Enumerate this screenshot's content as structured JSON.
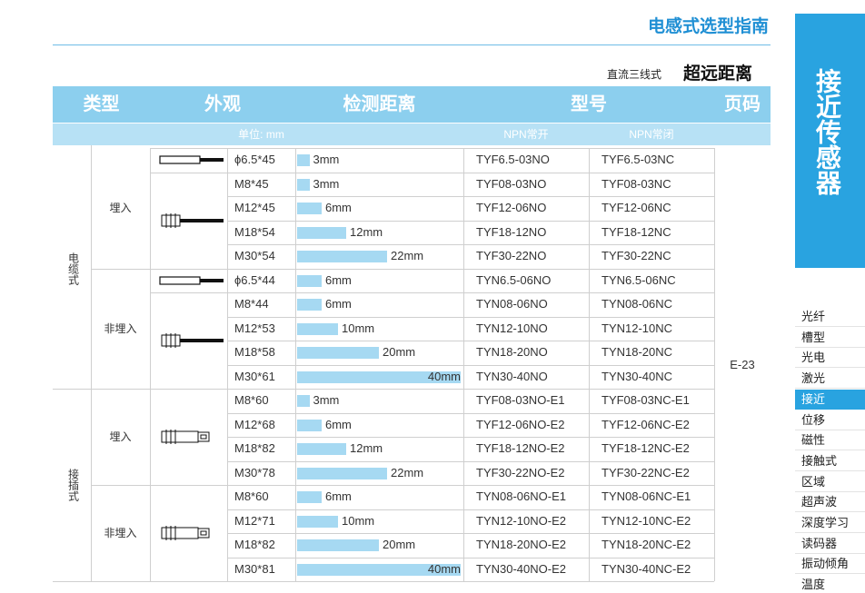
{
  "header": {
    "title": "电感式选型指南",
    "subtitle_small": "直流三线式",
    "subtitle": "超远距离"
  },
  "table": {
    "columns": [
      "类型",
      "外观",
      "检测距离",
      "型号",
      "页码"
    ],
    "unit": "单位: mm",
    "subcolumns": [
      "NPN常开",
      "NPN常闭"
    ],
    "page": "E-23",
    "groups": [
      {
        "label": "电缆式",
        "subgroups": [
          {
            "label": "埋入",
            "rows": [
              {
                "size": "ϕ6.5*45",
                "distance": 3,
                "distance_label": "3mm",
                "no": "TYF6.5-03NO",
                "nc": "TYF6.5-03NC"
              },
              {
                "size": "M8*45",
                "distance": 3,
                "distance_label": "3mm",
                "no": "TYF08-03NO",
                "nc": "TYF08-03NC"
              },
              {
                "size": "M12*45",
                "distance": 6,
                "distance_label": "6mm",
                "no": "TYF12-06NO",
                "nc": "TYF12-06NC"
              },
              {
                "size": "M18*54",
                "distance": 12,
                "distance_label": "12mm",
                "no": "TYF18-12NO",
                "nc": "TYF18-12NC"
              },
              {
                "size": "M30*54",
                "distance": 22,
                "distance_label": "22mm",
                "no": "TYF30-22NO",
                "nc": "TYF30-22NC"
              }
            ]
          },
          {
            "label": "非埋入",
            "rows": [
              {
                "size": "ϕ6.5*44",
                "distance": 6,
                "distance_label": "6mm",
                "no": "TYN6.5-06NO",
                "nc": "TYN6.5-06NC"
              },
              {
                "size": "M8*44",
                "distance": 6,
                "distance_label": "6mm",
                "no": "TYN08-06NO",
                "nc": "TYN08-06NC"
              },
              {
                "size": "M12*53",
                "distance": 10,
                "distance_label": "10mm",
                "no": "TYN12-10NO",
                "nc": "TYN12-10NC"
              },
              {
                "size": "M18*58",
                "distance": 20,
                "distance_label": "20mm",
                "no": "TYN18-20NO",
                "nc": "TYN18-20NC"
              },
              {
                "size": "M30*61",
                "distance": 40,
                "distance_label": "40mm",
                "no": "TYN30-40NO",
                "nc": "TYN30-40NC"
              }
            ]
          }
        ]
      },
      {
        "label": "接插式",
        "subgroups": [
          {
            "label": "埋入",
            "rows": [
              {
                "size": "M8*60",
                "distance": 3,
                "distance_label": "3mm",
                "no": "TYF08-03NO-E1",
                "nc": "TYF08-03NC-E1"
              },
              {
                "size": "M12*68",
                "distance": 6,
                "distance_label": "6mm",
                "no": "TYF12-06NO-E2",
                "nc": "TYF12-06NC-E2"
              },
              {
                "size": "M18*82",
                "distance": 12,
                "distance_label": "12mm",
                "no": "TYF18-12NO-E2",
                "nc": "TYF18-12NC-E2"
              },
              {
                "size": "M30*78",
                "distance": 22,
                "distance_label": "22mm",
                "no": "TYF30-22NO-E2",
                "nc": "TYF30-22NC-E2"
              }
            ]
          },
          {
            "label": "非埋入",
            "rows": [
              {
                "size": "M8*60",
                "distance": 6,
                "distance_label": "6mm",
                "no": "TYN08-06NO-E1",
                "nc": "TYN08-06NC-E1"
              },
              {
                "size": "M12*71",
                "distance": 10,
                "distance_label": "10mm",
                "no": "TYN12-10NO-E2",
                "nc": "TYN12-10NC-E2"
              },
              {
                "size": "M18*82",
                "distance": 20,
                "distance_label": "20mm",
                "no": "TYN18-20NO-E2",
                "nc": "TYN18-20NC-E2"
              },
              {
                "size": "M30*81",
                "distance": 40,
                "distance_label": "40mm",
                "no": "TYN30-40NO-E2",
                "nc": "TYN30-40NC-E2"
              }
            ]
          }
        ]
      }
    ]
  },
  "sidebar": {
    "title": "接近传感器",
    "menu": [
      "光纤",
      "槽型",
      "光电",
      "激光",
      "接近",
      "位移",
      "磁性",
      "接触式",
      "区域",
      "超声波",
      "深度学习",
      "读码器",
      "振动倾角",
      "温度"
    ],
    "active": 4
  }
}
